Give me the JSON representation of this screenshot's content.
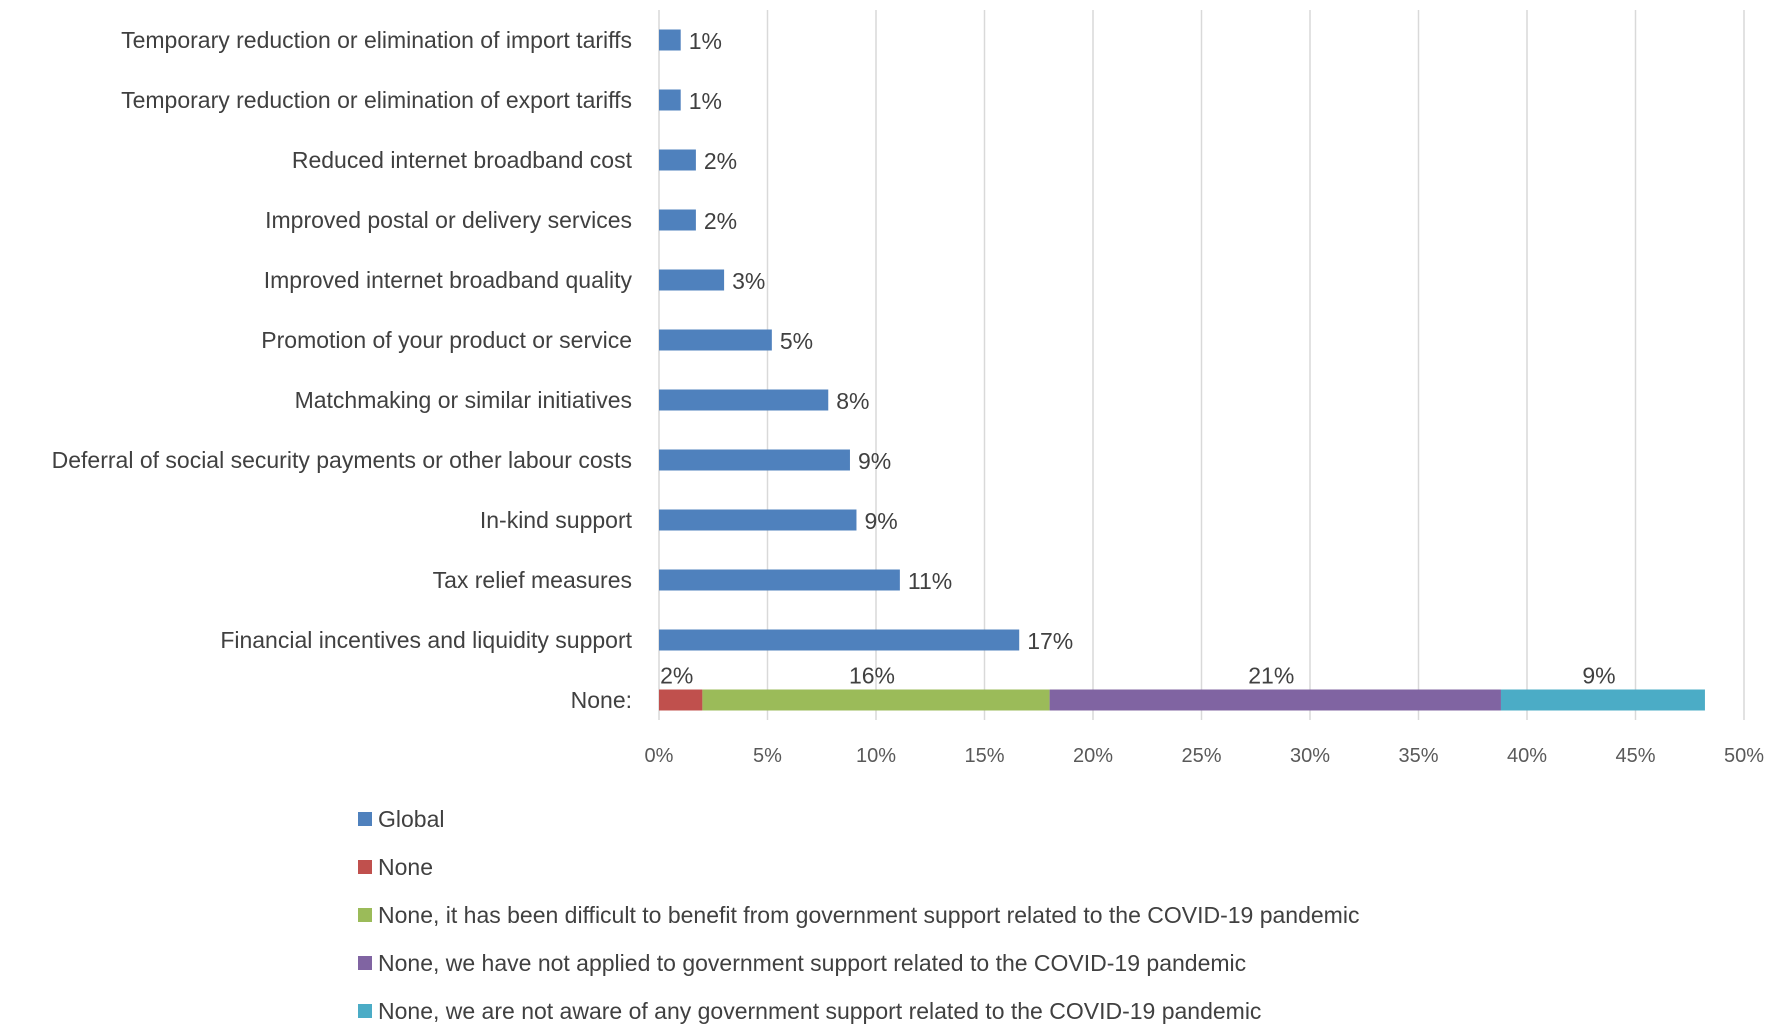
{
  "chart_data": {
    "type": "bar",
    "orientation": "horizontal",
    "stacked": true,
    "title": "",
    "xlabel": "",
    "ylabel": "",
    "xlim": [
      0,
      50
    ],
    "x_ticks": [
      "0%",
      "5%",
      "10%",
      "15%",
      "20%",
      "25%",
      "30%",
      "35%",
      "40%",
      "45%",
      "50%"
    ],
    "grid": "vertical",
    "legend_position": "bottom",
    "categories": [
      "Temporary reduction or elimination of import tariffs",
      "Temporary reduction or elimination of export tariffs",
      "Reduced internet broadband cost",
      "Improved postal or delivery services",
      "Improved internet broadband quality",
      "Promotion of your product or service",
      "Matchmaking or similar initiatives",
      "Deferral of social security payments or other labour costs",
      "In-kind support",
      "Tax relief measures",
      "Financial incentives and liquidity support",
      "None:"
    ],
    "series": [
      {
        "name": "Global",
        "color": "#4F81BD",
        "values": [
          1,
          1,
          1.7,
          1.7,
          3,
          5.2,
          7.8,
          8.8,
          9.1,
          11.1,
          16.6,
          0
        ],
        "labels": [
          "1%",
          "1%",
          "2%",
          "2%",
          "3%",
          "5%",
          "8%",
          "9%",
          "9%",
          "11%",
          "17%",
          ""
        ]
      },
      {
        "name": "None",
        "color": "#C0504D",
        "values": [
          0,
          0,
          0,
          0,
          0,
          0,
          0,
          0,
          0,
          0,
          0,
          2
        ],
        "labels": [
          "",
          "",
          "",
          "",
          "",
          "",
          "",
          "",
          "",
          "",
          "",
          "2%"
        ]
      },
      {
        "name": "None, it has been difficult to benefit from government support related to the COVID-19 pandemic",
        "color": "#9BBB59",
        "values": [
          0,
          0,
          0,
          0,
          0,
          0,
          0,
          0,
          0,
          0,
          0,
          16
        ],
        "labels": [
          "",
          "",
          "",
          "",
          "",
          "",
          "",
          "",
          "",
          "",
          "",
          "16%"
        ]
      },
      {
        "name": "None, we have not applied to government support related to the COVID-19 pandemic",
        "color": "#8064A2",
        "values": [
          0,
          0,
          0,
          0,
          0,
          0,
          0,
          0,
          0,
          0,
          0,
          20.8
        ],
        "labels": [
          "",
          "",
          "",
          "",
          "",
          "",
          "",
          "",
          "",
          "",
          "",
          "21%"
        ]
      },
      {
        "name": "None, we are not aware of any government support related to the COVID-19 pandemic",
        "color": "#4BACC6",
        "values": [
          0,
          0,
          0,
          0,
          0,
          0,
          0,
          0,
          0,
          0,
          0,
          9.4
        ],
        "labels": [
          "",
          "",
          "",
          "",
          "",
          "",
          "",
          "",
          "",
          "",
          "",
          "9%"
        ]
      }
    ]
  }
}
